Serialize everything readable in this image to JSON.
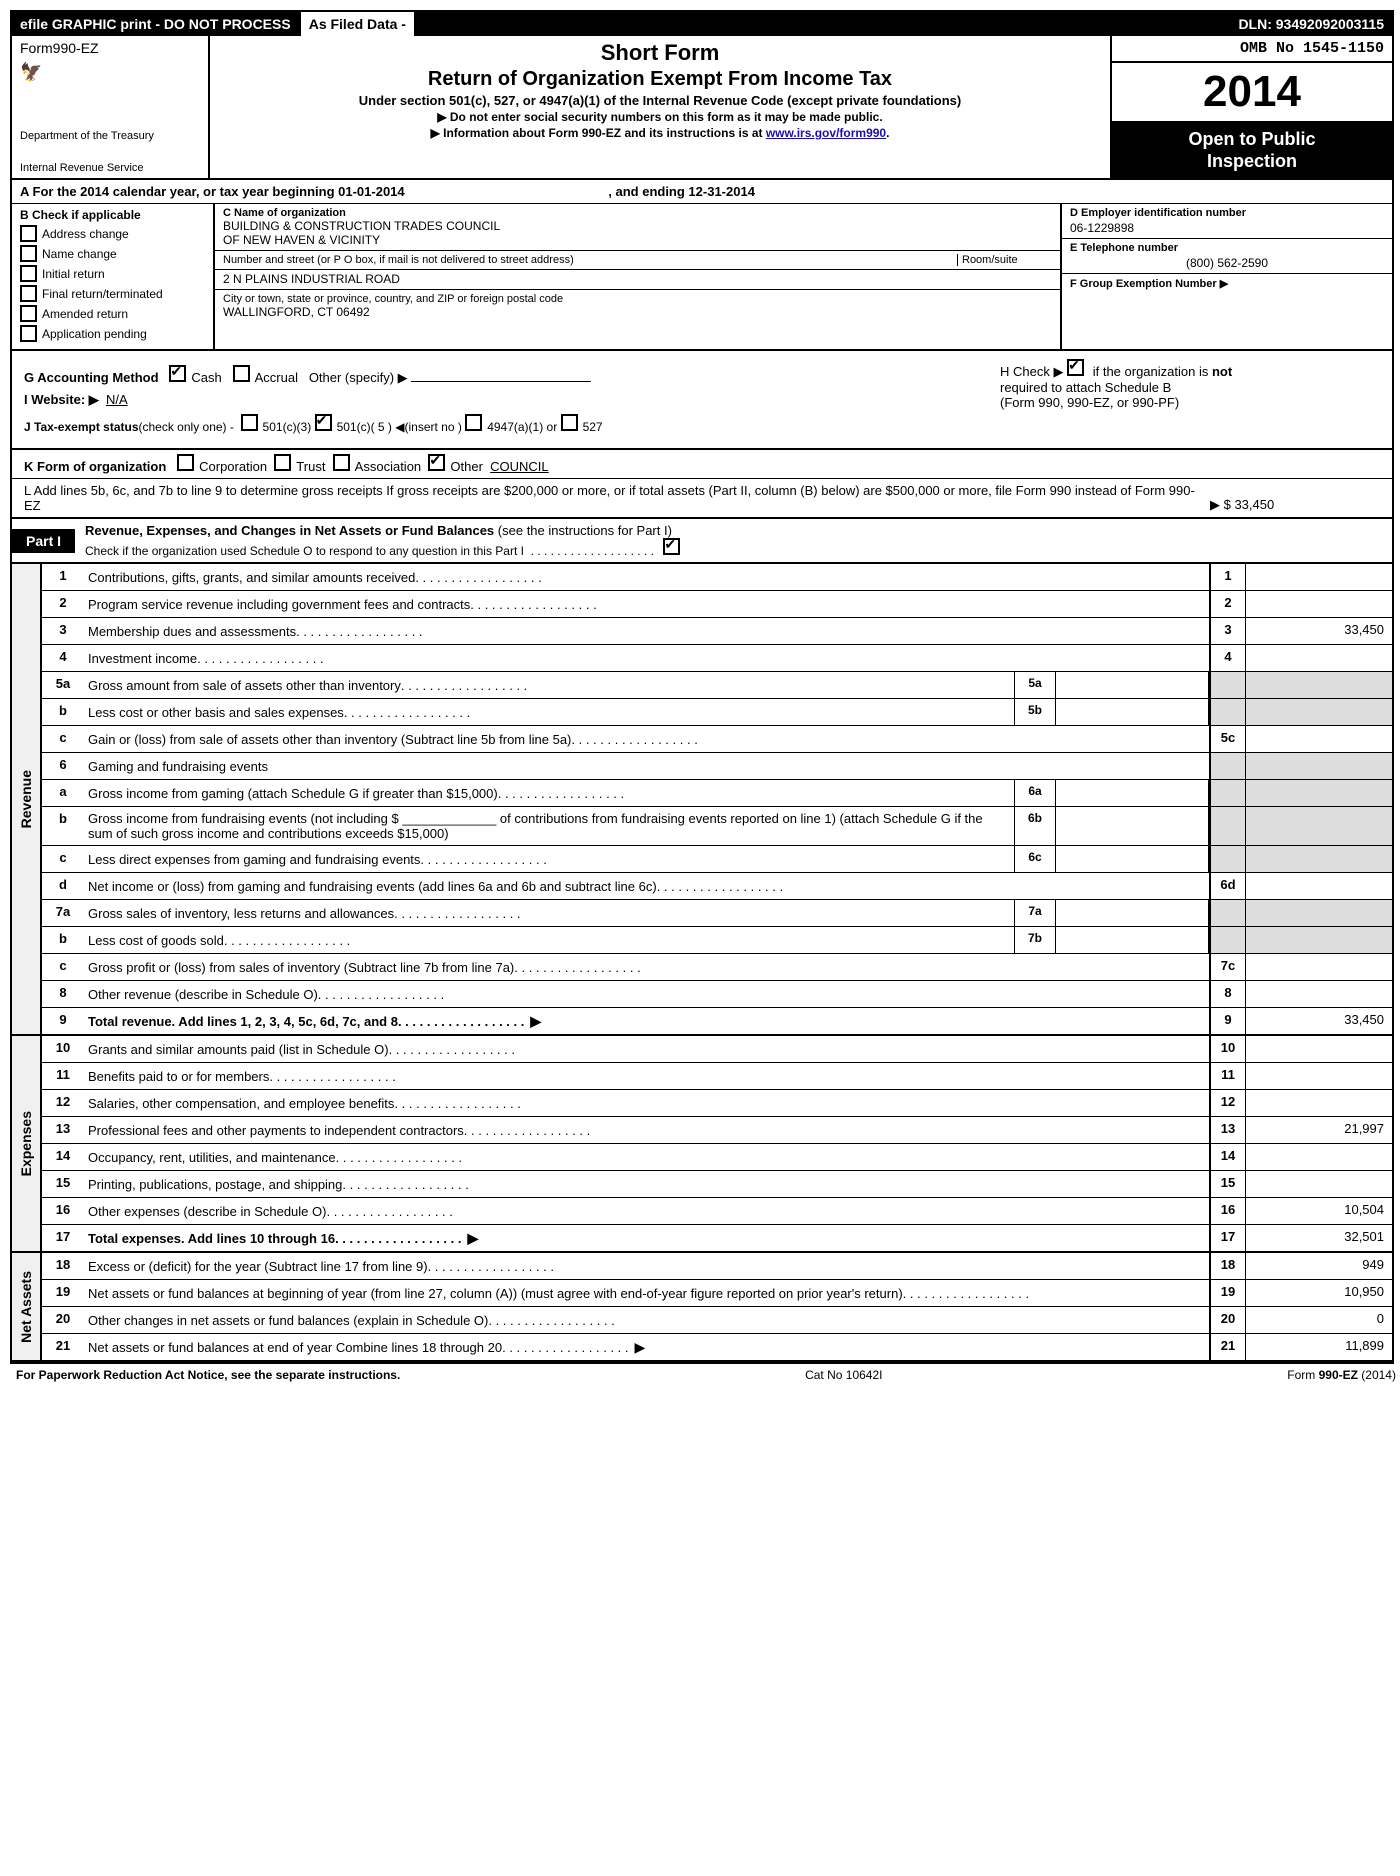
{
  "topbar": {
    "left": "efile GRAPHIC print - DO NOT PROCESS",
    "mid": "As Filed Data -",
    "right": "DLN: 93492092003115"
  },
  "header": {
    "form_prefix": "Form",
    "form_no": "990-EZ",
    "dept1": "Department of the Treasury",
    "dept2": "Internal Revenue Service",
    "short_form": "Short Form",
    "main_title": "Return of Organization Exempt From Income Tax",
    "sub": "Under section 501(c), 527, or 4947(a)(1) of the Internal Revenue Code (except private foundations)",
    "note1": "▶ Do not enter social security numbers on this form as it may be made public.",
    "note2_pre": "▶ Information about Form 990-EZ and its instructions is at ",
    "note2_link": "www.irs.gov/form990",
    "note2_post": ".",
    "omb": "OMB No 1545-1150",
    "year": "2014",
    "open_pub1": "Open to Public",
    "open_pub2": "Inspection"
  },
  "sectionA": {
    "prefix": "A  For the 2014 calendar year, or tax year beginning 01-01-2014",
    "ending": ", and ending 12-31-2014"
  },
  "sectionB": {
    "label": "B  Check if applicable",
    "addr_change": "Address change",
    "name_change": "Name change",
    "initial": "Initial return",
    "final": "Final return/terminated",
    "amended": "Amended return",
    "pending": "Application pending"
  },
  "sectionC": {
    "name_label": "C Name of organization",
    "name1": "BUILDING & CONSTRUCTION TRADES COUNCIL",
    "name2": "OF NEW HAVEN & VICINITY",
    "street_label": "Number and street (or P O box, if mail is not delivered to street address)",
    "room_label": "Room/suite",
    "street": "2 N PLAINS INDUSTRIAL ROAD",
    "city_label": "City or town, state or province, country, and ZIP or foreign postal code",
    "city": "WALLINGFORD, CT  06492"
  },
  "sectionD": {
    "label": "D Employer identification number",
    "val": "06-1229898"
  },
  "sectionE": {
    "label": "E Telephone number",
    "val": "(800) 562-2590"
  },
  "sectionF": {
    "label": "F Group Exemption Number     ▶"
  },
  "sectionG": {
    "label": "G Accounting Method",
    "cash": "Cash",
    "accrual": "Accrual",
    "other": "Other (specify) ▶"
  },
  "sectionH": {
    "pre": "H   Check ▶",
    "post": "if the organization is ",
    "not": "not",
    "line2": "required to attach Schedule B",
    "line3": "(Form 990, 990-EZ, or 990-PF)"
  },
  "sectionI": {
    "label": "I Website: ▶",
    "val": "N/A"
  },
  "sectionJ": {
    "label": "J Tax-exempt status",
    "paren": "(check only one) -",
    "c3": "501(c)(3)",
    "c5": "501(c)( 5 ) ◀(insert no )",
    "a1": "4947(a)(1) or",
    "s527": "527"
  },
  "sectionK": {
    "label": "K Form of organization",
    "corp": "Corporation",
    "trust": "Trust",
    "assoc": "Association",
    "other_label": "Other",
    "other_val": "COUNCIL"
  },
  "sectionL": {
    "text": "L Add lines 5b, 6c, and 7b to line 9 to determine gross receipts  If gross receipts are $200,000 or more, or if total assets (Part II, column (B) below) are $500,000 or more, file Form 990 instead of Form 990-EZ",
    "amount": "▶ $ 33,450"
  },
  "part1": {
    "badge": "Part I",
    "title": "Revenue, Expenses, and Changes in Net Assets or Fund Balances",
    "paren": "(see the instructions for Part I)",
    "sub": "Check if the organization used Schedule O to respond to any question in this Part I"
  },
  "rows": {
    "r1": {
      "n": "1",
      "d": "Contributions, gifts, grants, and similar amounts received",
      "rn": "1",
      "v": ""
    },
    "r2": {
      "n": "2",
      "d": "Program service revenue including government fees and contracts",
      "rn": "2",
      "v": ""
    },
    "r3": {
      "n": "3",
      "d": "Membership dues and assessments",
      "rn": "3",
      "v": "33,450"
    },
    "r4": {
      "n": "4",
      "d": "Investment income",
      "rn": "4",
      "v": ""
    },
    "r5a": {
      "n": "5a",
      "d": "Gross amount from sale of assets other than inventory",
      "sn": "5a"
    },
    "r5b": {
      "n": "b",
      "d": "Less  cost or other basis and sales expenses",
      "sn": "5b"
    },
    "r5c": {
      "n": "c",
      "d": "Gain or (loss) from sale of assets other than inventory (Subtract line 5b from line 5a)",
      "rn": "5c",
      "v": ""
    },
    "r6": {
      "n": "6",
      "d": "Gaming and fundraising events"
    },
    "r6a": {
      "n": "a",
      "d": "Gross income from gaming (attach Schedule G if greater than $15,000)",
      "sn": "6a"
    },
    "r6b": {
      "n": "b",
      "d": "Gross income from fundraising events (not including $ _____________ of contributions from fundraising events reported on line 1) (attach Schedule G if the sum of such gross income and contributions exceeds $15,000)",
      "sn": "6b"
    },
    "r6c": {
      "n": "c",
      "d": "Less  direct expenses from gaming and fundraising events",
      "sn": "6c"
    },
    "r6d": {
      "n": "d",
      "d": "Net income or (loss) from gaming and fundraising events (add lines 6a and 6b and subtract line 6c)",
      "rn": "6d",
      "v": ""
    },
    "r7a": {
      "n": "7a",
      "d": "Gross sales of inventory, less returns and allowances",
      "sn": "7a"
    },
    "r7b": {
      "n": "b",
      "d": "Less  cost of goods sold",
      "sn": "7b"
    },
    "r7c": {
      "n": "c",
      "d": "Gross profit or (loss) from sales of inventory (Subtract line 7b from line 7a)",
      "rn": "7c",
      "v": ""
    },
    "r8": {
      "n": "8",
      "d": "Other revenue (describe in Schedule O)",
      "rn": "8",
      "v": ""
    },
    "r9": {
      "n": "9",
      "d": "Total revenue. Add lines 1, 2, 3, 4, 5c, 6d, 7c, and 8",
      "rn": "9",
      "v": "33,450",
      "arrow": true,
      "bold": true
    },
    "r10": {
      "n": "10",
      "d": "Grants and similar amounts paid (list in Schedule O)",
      "rn": "10",
      "v": ""
    },
    "r11": {
      "n": "11",
      "d": "Benefits paid to or for members",
      "rn": "11",
      "v": ""
    },
    "r12": {
      "n": "12",
      "d": "Salaries, other compensation, and employee benefits",
      "rn": "12",
      "v": ""
    },
    "r13": {
      "n": "13",
      "d": "Professional fees and other payments to independent contractors",
      "rn": "13",
      "v": "21,997"
    },
    "r14": {
      "n": "14",
      "d": "Occupancy, rent, utilities, and maintenance",
      "rn": "14",
      "v": ""
    },
    "r15": {
      "n": "15",
      "d": "Printing, publications, postage, and shipping",
      "rn": "15",
      "v": ""
    },
    "r16": {
      "n": "16",
      "d": "Other expenses (describe in Schedule O)",
      "rn": "16",
      "v": "10,504"
    },
    "r17": {
      "n": "17",
      "d": "Total expenses. Add lines 10 through 16",
      "rn": "17",
      "v": "32,501",
      "arrow": true,
      "bold": true
    },
    "r18": {
      "n": "18",
      "d": "Excess or (deficit) for the year (Subtract line 17 from line 9)",
      "rn": "18",
      "v": "949"
    },
    "r19": {
      "n": "19",
      "d": "Net assets or fund balances at beginning of year (from line 27, column (A)) (must agree with end-of-year figure reported on prior year's return)",
      "rn": "19",
      "v": "10,950"
    },
    "r20": {
      "n": "20",
      "d": "Other changes in net assets or fund balances (explain in Schedule O)",
      "rn": "20",
      "v": "0"
    },
    "r21": {
      "n": "21",
      "d": "Net assets or fund balances at end of year Combine lines 18 through 20",
      "rn": "21",
      "v": "11,899",
      "arrow": true
    }
  },
  "sides": {
    "rev": "Revenue",
    "exp": "Expenses",
    "na": "Net Assets"
  },
  "footer": {
    "left": "For Paperwork Reduction Act Notice, see the separate instructions.",
    "mid": "Cat No 10642I",
    "right": "Form 990-EZ (2014)"
  }
}
